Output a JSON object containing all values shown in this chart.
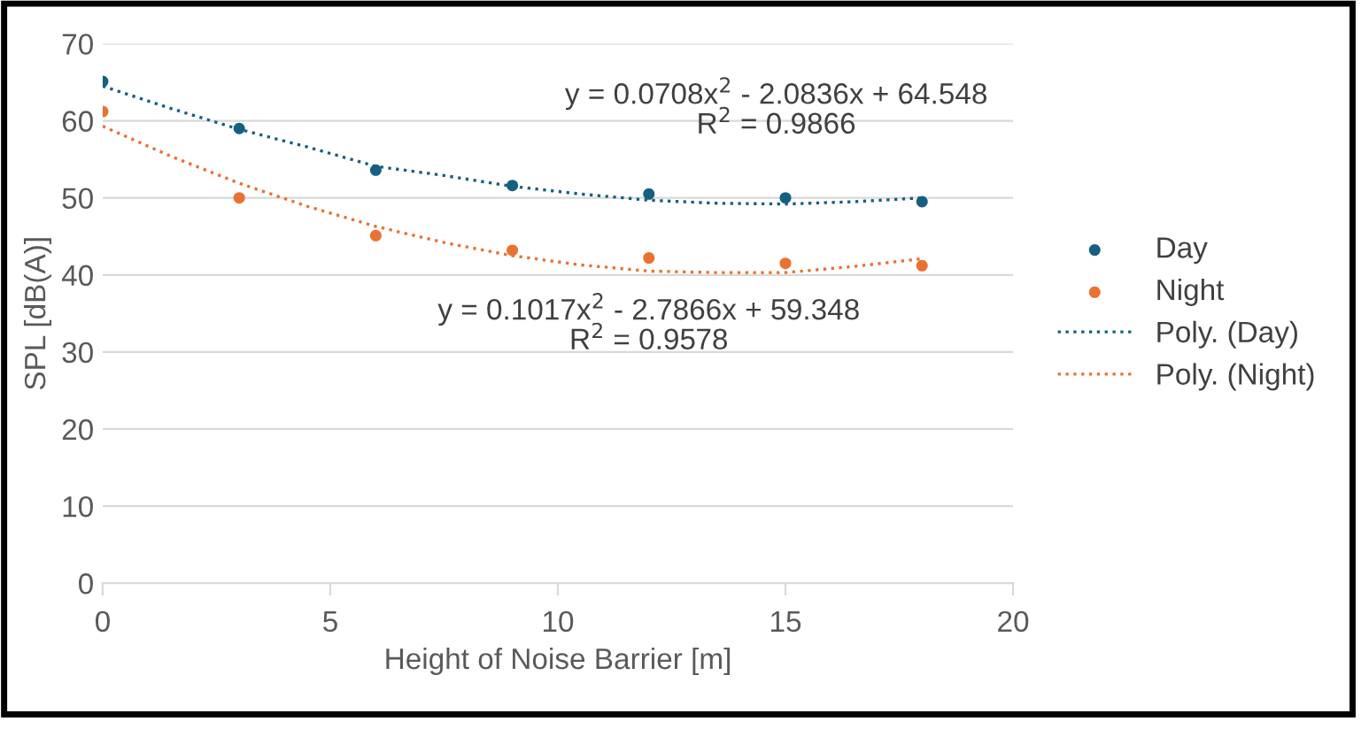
{
  "chart_data": {
    "type": "scatter",
    "xlabel": "Height of Noise Barrier [m]",
    "ylabel": "SPL [dB(A)]",
    "xlim": [
      0,
      20
    ],
    "xticks": [
      0,
      5,
      10,
      15,
      20
    ],
    "ylim": [
      0,
      70
    ],
    "yticks": [
      0,
      10,
      20,
      30,
      40,
      50,
      60,
      70
    ],
    "grid": "y",
    "legend": "right",
    "series": [
      {
        "name": "Day",
        "marker": "circle",
        "color": "#156082",
        "x": [
          0,
          3,
          6,
          9,
          12,
          15,
          18
        ],
        "values": [
          65.1,
          59.0,
          53.6,
          51.6,
          50.5,
          50.0,
          49.5
        ]
      },
      {
        "name": "Night",
        "marker": "circle",
        "color": "#e97132",
        "x": [
          0,
          3,
          6,
          9,
          12,
          15,
          18
        ],
        "values": [
          61.2,
          50.0,
          45.1,
          43.2,
          42.2,
          41.5,
          41.2
        ]
      },
      {
        "name": "Poly. (Day)",
        "type": "line",
        "marker": "none",
        "line_style": "dotted",
        "color": "#156082",
        "x": [
          0,
          1.5,
          3,
          4.5,
          6,
          7.5,
          9,
          10.5,
          12,
          13.5,
          15,
          16.5,
          18
        ],
        "values": [
          64.5,
          61.6,
          58.9,
          56.6,
          54.1,
          52.9,
          51.5,
          50.5,
          49.7,
          49.3,
          49.2,
          49.5,
          50.0
        ]
      },
      {
        "name": "Poly. (Night)",
        "type": "line",
        "marker": "none",
        "line_style": "dotted",
        "color": "#e97132",
        "x": [
          0,
          1.5,
          3,
          4.5,
          6,
          7.5,
          9,
          10.5,
          12,
          13.5,
          15,
          16.5,
          18
        ],
        "values": [
          59.3,
          55.4,
          51.9,
          48.9,
          46.3,
          44.2,
          42.5,
          41.3,
          40.5,
          40.3,
          40.3,
          41.1,
          42.1
        ]
      }
    ],
    "annotations": [
      "y = 0.0708x$^{2}$ - 2.0836x + 64.548\nR$^{2}$ = 0.9866",
      "y = 0.1017x$^{2}$ - 2.7866x + 59.348\nR$^{2}$ = 0.9578"
    ]
  }
}
